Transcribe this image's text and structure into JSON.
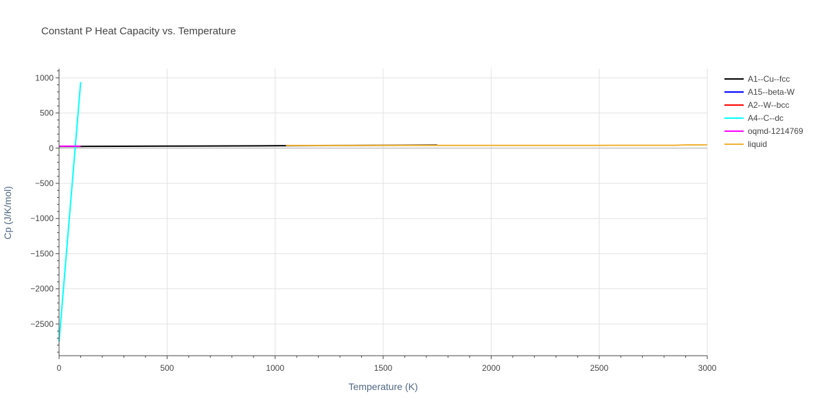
{
  "chart_data": {
    "type": "line",
    "title": "Constant P Heat Capacity vs. Temperature",
    "xlabel": "Temperature (K)",
    "ylabel": "Cp (J/K/mol)",
    "xlim": [
      0,
      3000
    ],
    "ylim": [
      -2950,
      1130
    ],
    "xticks": [
      0,
      500,
      1000,
      1500,
      2000,
      2500,
      3000
    ],
    "yticks": [
      1000,
      500,
      0,
      -500,
      -1000,
      -1500,
      -2000,
      -2500
    ],
    "ytick_labels": [
      "1000",
      "500",
      "0",
      "−500",
      "−1000",
      "−1500",
      "−2000",
      "−2500"
    ],
    "grid": true,
    "legend_position": "right",
    "series": [
      {
        "name": "A1--Cu--fcc",
        "color": "#000000",
        "x": [
          0,
          100,
          300,
          500,
          700,
          1000,
          1300,
          1500,
          1750
        ],
        "y": [
          24,
          25,
          27,
          29,
          31,
          34,
          38,
          41,
          45
        ]
      },
      {
        "name": "A15--beta-W",
        "color": "#0000ff",
        "x": [],
        "y": []
      },
      {
        "name": "A2--W--bcc",
        "color": "#ff0000",
        "x": [],
        "y": []
      },
      {
        "name": "A4--C--dc",
        "color": "#00ffff",
        "x": [
          0,
          100
        ],
        "y": [
          -2750,
          940
        ]
      },
      {
        "name": "oqmd-1214769",
        "color": "#ff00ff",
        "x": [
          0,
          100
        ],
        "y": [
          28,
          28
        ]
      },
      {
        "name": "liquid",
        "color": "#f0b030",
        "x": [
          1050,
          1500,
          2000,
          2500,
          2850,
          2900,
          3000
        ],
        "y": [
          38,
          39,
          40,
          40,
          41,
          47,
          48
        ]
      }
    ]
  }
}
